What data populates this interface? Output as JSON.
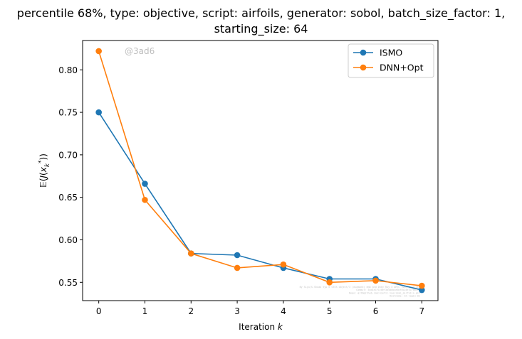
{
  "chart_data": {
    "type": "line",
    "title_line1": "percentile 68%, type: objective, script: airfoils, generator: sobol, batch_size_factor: 1,",
    "title_line2": "starting_size: 64",
    "xlabel": "Iteration k",
    "ylabel": "E(J(x_k*))",
    "watermark": "@3ad6",
    "x": [
      0,
      1,
      2,
      3,
      4,
      5,
      6,
      7
    ],
    "xlim": [
      -0.35,
      7.35
    ],
    "ylim": [
      0.5285,
      0.8345
    ],
    "xticks": [
      0,
      1,
      2,
      3,
      4,
      5,
      6,
      7
    ],
    "yticks": [
      0.55,
      0.6,
      0.65,
      0.7,
      0.75,
      0.8
    ],
    "ytick_labels": [
      "0.55",
      "0.60",
      "0.65",
      "0.70",
      "0.75",
      "0.80"
    ],
    "legend_position": "top-right",
    "grid": false,
    "series": [
      {
        "name": "ISMO",
        "color": "#1f77b4",
        "values": [
          0.75,
          0.666,
          0.584,
          0.582,
          0.567,
          0.554,
          0.554,
          0.541
        ]
      },
      {
        "name": "DNN+Opt",
        "color": "#ff7f0e",
        "values": [
          0.822,
          0.647,
          0.584,
          0.567,
          0.571,
          0.55,
          0.552,
          0.546
        ]
      }
    ],
    "footnote_lines": [
      "By Siyu/S.Shuao typ 6 GTEX object/3 (diamond) emb and Dney Ruy 3 ARTL (what) (Lint)",
      "Commit: 5ad1e1f1c0ef3a5d0b4e6bf0c28f51f0b1f2",
      "Repo: git@github.com:kjetil-lye/ismo_airfoils.git",
      "Hostname: ml-login-01"
    ]
  }
}
